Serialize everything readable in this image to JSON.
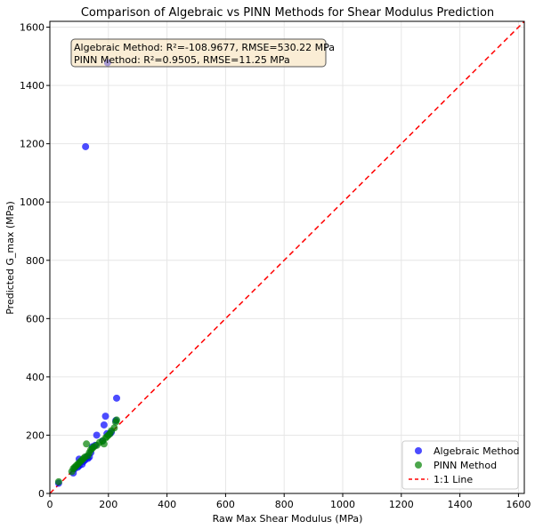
{
  "chart_data": {
    "type": "scatter",
    "title": "Comparison of Algebraic vs PINN Methods for Shear Modulus Prediction",
    "xlabel": "Raw Max Shear Modulus (MPa)",
    "ylabel": "Predicted G_max (MPa)",
    "xlim": [
      0,
      1620
    ],
    "ylim": [
      0,
      1620
    ],
    "x_ticks": [
      "0",
      "200",
      "400",
      "600",
      "800",
      "1000",
      "1200",
      "1400",
      "1600"
    ],
    "y_ticks": [
      "0",
      "200",
      "400",
      "600",
      "800",
      "1000",
      "1200",
      "1400",
      "1600"
    ],
    "grid": true,
    "legend_position": "lower-right",
    "annotation": {
      "line1": "Algebraic Method: R²=-108.9677, RMSE=530.22 MPa",
      "line2": "PINN Method: R²=0.9505, RMSE=11.25 MPa",
      "position": "top-left"
    },
    "series": [
      {
        "name": "Algebraic Method",
        "color": "#0000ff",
        "points": [
          [
            30,
            35
          ],
          [
            80,
            70
          ],
          [
            85,
            85
          ],
          [
            95,
            90
          ],
          [
            100,
            95
          ],
          [
            100,
            118
          ],
          [
            105,
            108
          ],
          [
            110,
            100
          ],
          [
            115,
            110
          ],
          [
            120,
            115
          ],
          [
            122,
            1190
          ],
          [
            125,
            125
          ],
          [
            130,
            120
          ],
          [
            135,
            125
          ],
          [
            140,
            140
          ],
          [
            145,
            160
          ],
          [
            155,
            165
          ],
          [
            160,
            200
          ],
          [
            180,
            180
          ],
          [
            185,
            235
          ],
          [
            190,
            265
          ],
          [
            195,
            205
          ],
          [
            197,
            1478
          ],
          [
            205,
            205
          ],
          [
            210,
            210
          ],
          [
            225,
            250
          ],
          [
            228,
            327
          ]
        ]
      },
      {
        "name": "PINN Method",
        "color": "#008000",
        "points": [
          [
            30,
            40
          ],
          [
            75,
            75
          ],
          [
            80,
            85
          ],
          [
            85,
            90
          ],
          [
            90,
            95
          ],
          [
            95,
            100
          ],
          [
            100,
            105
          ],
          [
            105,
            110
          ],
          [
            110,
            115
          ],
          [
            115,
            120
          ],
          [
            120,
            125
          ],
          [
            125,
            170
          ],
          [
            130,
            130
          ],
          [
            135,
            140
          ],
          [
            140,
            150
          ],
          [
            145,
            155
          ],
          [
            150,
            160
          ],
          [
            160,
            165
          ],
          [
            170,
            175
          ],
          [
            180,
            180
          ],
          [
            185,
            170
          ],
          [
            190,
            190
          ],
          [
            195,
            195
          ],
          [
            200,
            200
          ],
          [
            205,
            205
          ],
          [
            210,
            215
          ],
          [
            220,
            225
          ],
          [
            225,
            245
          ],
          [
            228,
            252
          ]
        ]
      },
      {
        "name": "1:1 Line",
        "color": "#ff0000",
        "style": "dashed",
        "points": [
          [
            0,
            0
          ],
          [
            1620,
            1620
          ]
        ]
      }
    ]
  }
}
